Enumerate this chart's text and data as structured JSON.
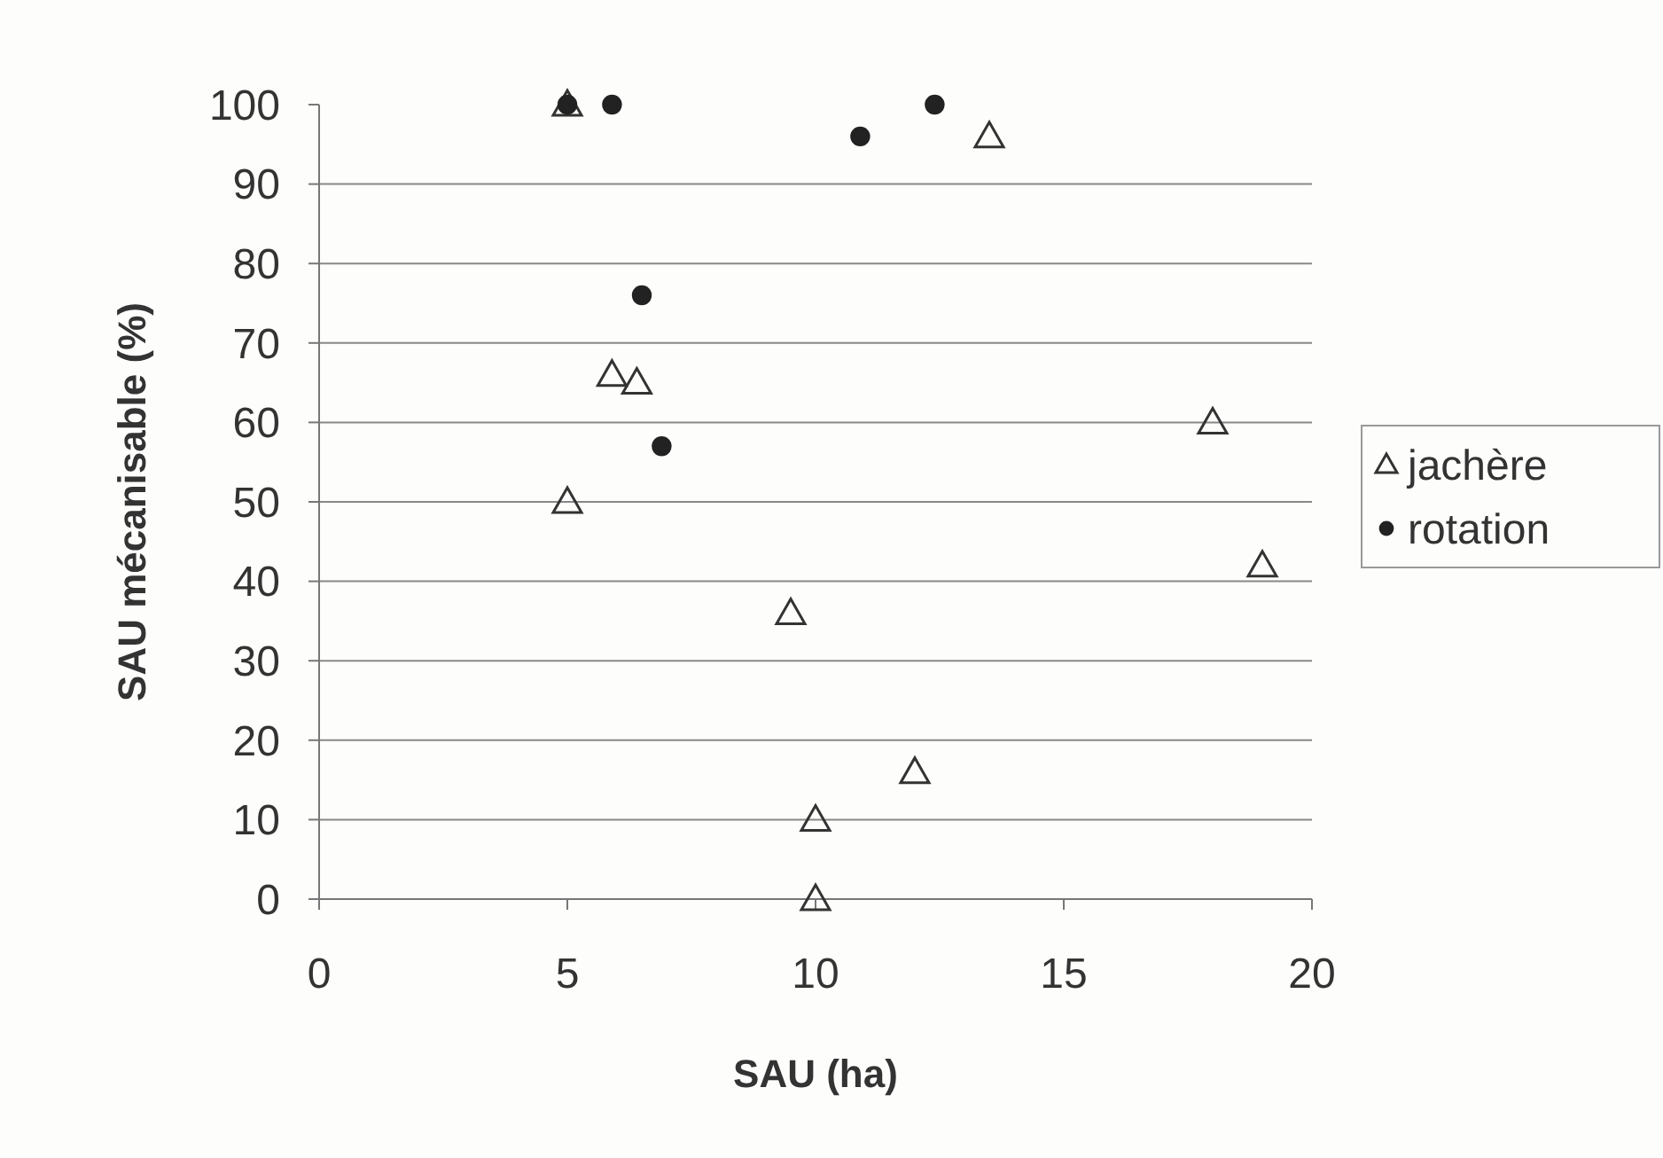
{
  "chart_data": {
    "type": "scatter",
    "xlabel": "SAU (ha)",
    "ylabel": "SAU mécanisable (%)",
    "xlim": [
      0,
      20
    ],
    "xticks": [
      0,
      5,
      10,
      15,
      20
    ],
    "ylim": [
      0,
      100
    ],
    "yticks": [
      0,
      10,
      20,
      30,
      40,
      50,
      60,
      70,
      80,
      90,
      100
    ],
    "grid": "y",
    "legend": "right",
    "series": [
      {
        "name": "jachère",
        "color": "#333333",
        "marker": "triangle",
        "x": [
          5.0,
          5.9,
          6.4,
          5.0,
          13.5,
          9.5,
          19.0,
          12.0,
          10.0,
          10.0,
          18.0
        ],
        "values": [
          100,
          66,
          65,
          50,
          96,
          36,
          42,
          16,
          10,
          0,
          60
        ]
      },
      {
        "name": "rotation",
        "color": "#222222",
        "marker": "circle",
        "x": [
          5.0,
          5.9,
          10.9,
          12.4,
          6.5,
          6.9
        ],
        "values": [
          100,
          100,
          96,
          100,
          76,
          57
        ]
      }
    ]
  }
}
